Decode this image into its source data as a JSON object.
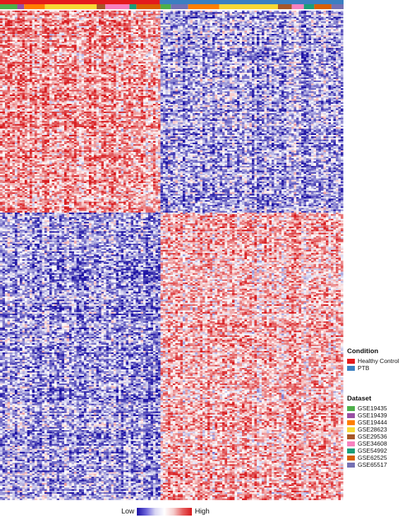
{
  "legend": {
    "condition_title": "Condition",
    "condition_items": [
      {
        "label": "Healthy Control",
        "color": "#e41a1c"
      },
      {
        "label": "PTB",
        "color": "#3a7fc1"
      }
    ],
    "dataset_title": "Dataset",
    "dataset_items": [
      {
        "label": "GSE19435",
        "color": "#4daf4a"
      },
      {
        "label": "GSE19439",
        "color": "#984ea3"
      },
      {
        "label": "GSE19444",
        "color": "#ff7f00"
      },
      {
        "label": "GSE28623",
        "color": "#f7d835"
      },
      {
        "label": "GSE29536",
        "color": "#a65628"
      },
      {
        "label": "GSE34608",
        "color": "#f781bf"
      },
      {
        "label": "GSE54992",
        "color": "#1b9e77"
      },
      {
        "label": "GSE62525",
        "color": "#d95f02"
      },
      {
        "label": "GSE65517",
        "color": "#7570b3"
      }
    ]
  },
  "color_scale": {
    "low_label": "Low",
    "high_label": "High",
    "low_color": "#1a0fa3",
    "mid_color": "#ffffff",
    "high_color": "#d7191c"
  },
  "chart_data": {
    "type": "heatmap",
    "description_rows": "genes clustered into two blocks",
    "column_groups_condition": [
      {
        "condition": "Healthy Control",
        "fraction": 0.465
      },
      {
        "condition": "PTB",
        "fraction": 0.535
      }
    ],
    "column_groups_dataset": [
      {
        "dataset": "GSE19435",
        "fraction": 0.05
      },
      {
        "dataset": "GSE19439",
        "fraction": 0.02
      },
      {
        "dataset": "GSE19444",
        "fraction": 0.06
      },
      {
        "dataset": "GSE28623",
        "fraction": 0.15
      },
      {
        "dataset": "GSE29536",
        "fraction": 0.025
      },
      {
        "dataset": "GSE34608",
        "fraction": 0.07
      },
      {
        "dataset": "GSE54992",
        "fraction": 0.02
      },
      {
        "dataset": "GSE62525",
        "fraction": 0.07
      },
      {
        "dataset": "GSE19435",
        "fraction": 0.03
      },
      {
        "dataset": "GSE65517",
        "fraction": 0.05
      },
      {
        "dataset": "GSE19444",
        "fraction": 0.09
      },
      {
        "dataset": "GSE28623",
        "fraction": 0.17
      },
      {
        "dataset": "GSE29536",
        "fraction": 0.04
      },
      {
        "dataset": "GSE34608",
        "fraction": 0.035
      },
      {
        "dataset": "GSE54992",
        "fraction": 0.03
      },
      {
        "dataset": "GSE62525",
        "fraction": 0.05
      },
      {
        "dataset": "GSE65517",
        "fraction": 0.035
      }
    ],
    "row_blocks": [
      {
        "block": "upper",
        "fraction": 0.41,
        "healthy_level": 0.6,
        "ptb_level": -0.5
      },
      {
        "block": "lower",
        "fraction": 0.59,
        "healthy_level": -0.55,
        "ptb_level": 0.45
      }
    ]
  }
}
